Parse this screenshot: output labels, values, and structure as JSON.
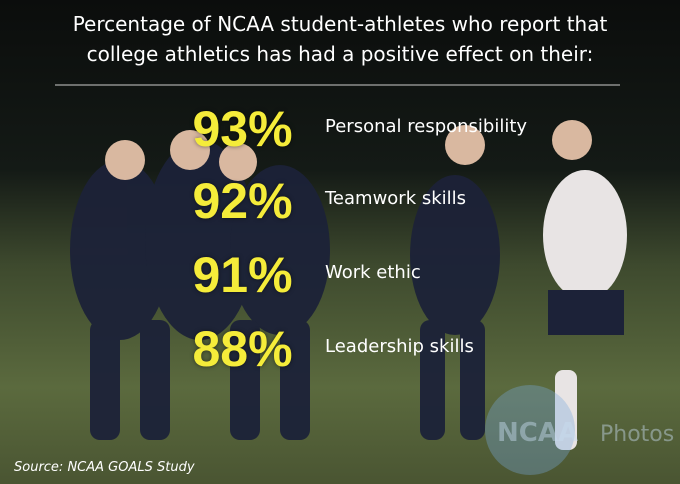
{
  "title_lines": [
    "Percentage of NCAA student-athletes who report that",
    "college athletics has had a positive effect on their:"
  ],
  "stats": [
    {
      "percent": "93%",
      "label": "Personal responsibility"
    },
    {
      "percent": "92%",
      "label": "Teamwork skills"
    },
    {
      "percent": "91%",
      "label": "Work ethic"
    },
    {
      "percent": "88%",
      "label": "Leadership skills"
    }
  ],
  "watermark": [
    "NCAA",
    "Photos"
  ],
  "source": "Source: NCAA GOALS Study"
}
